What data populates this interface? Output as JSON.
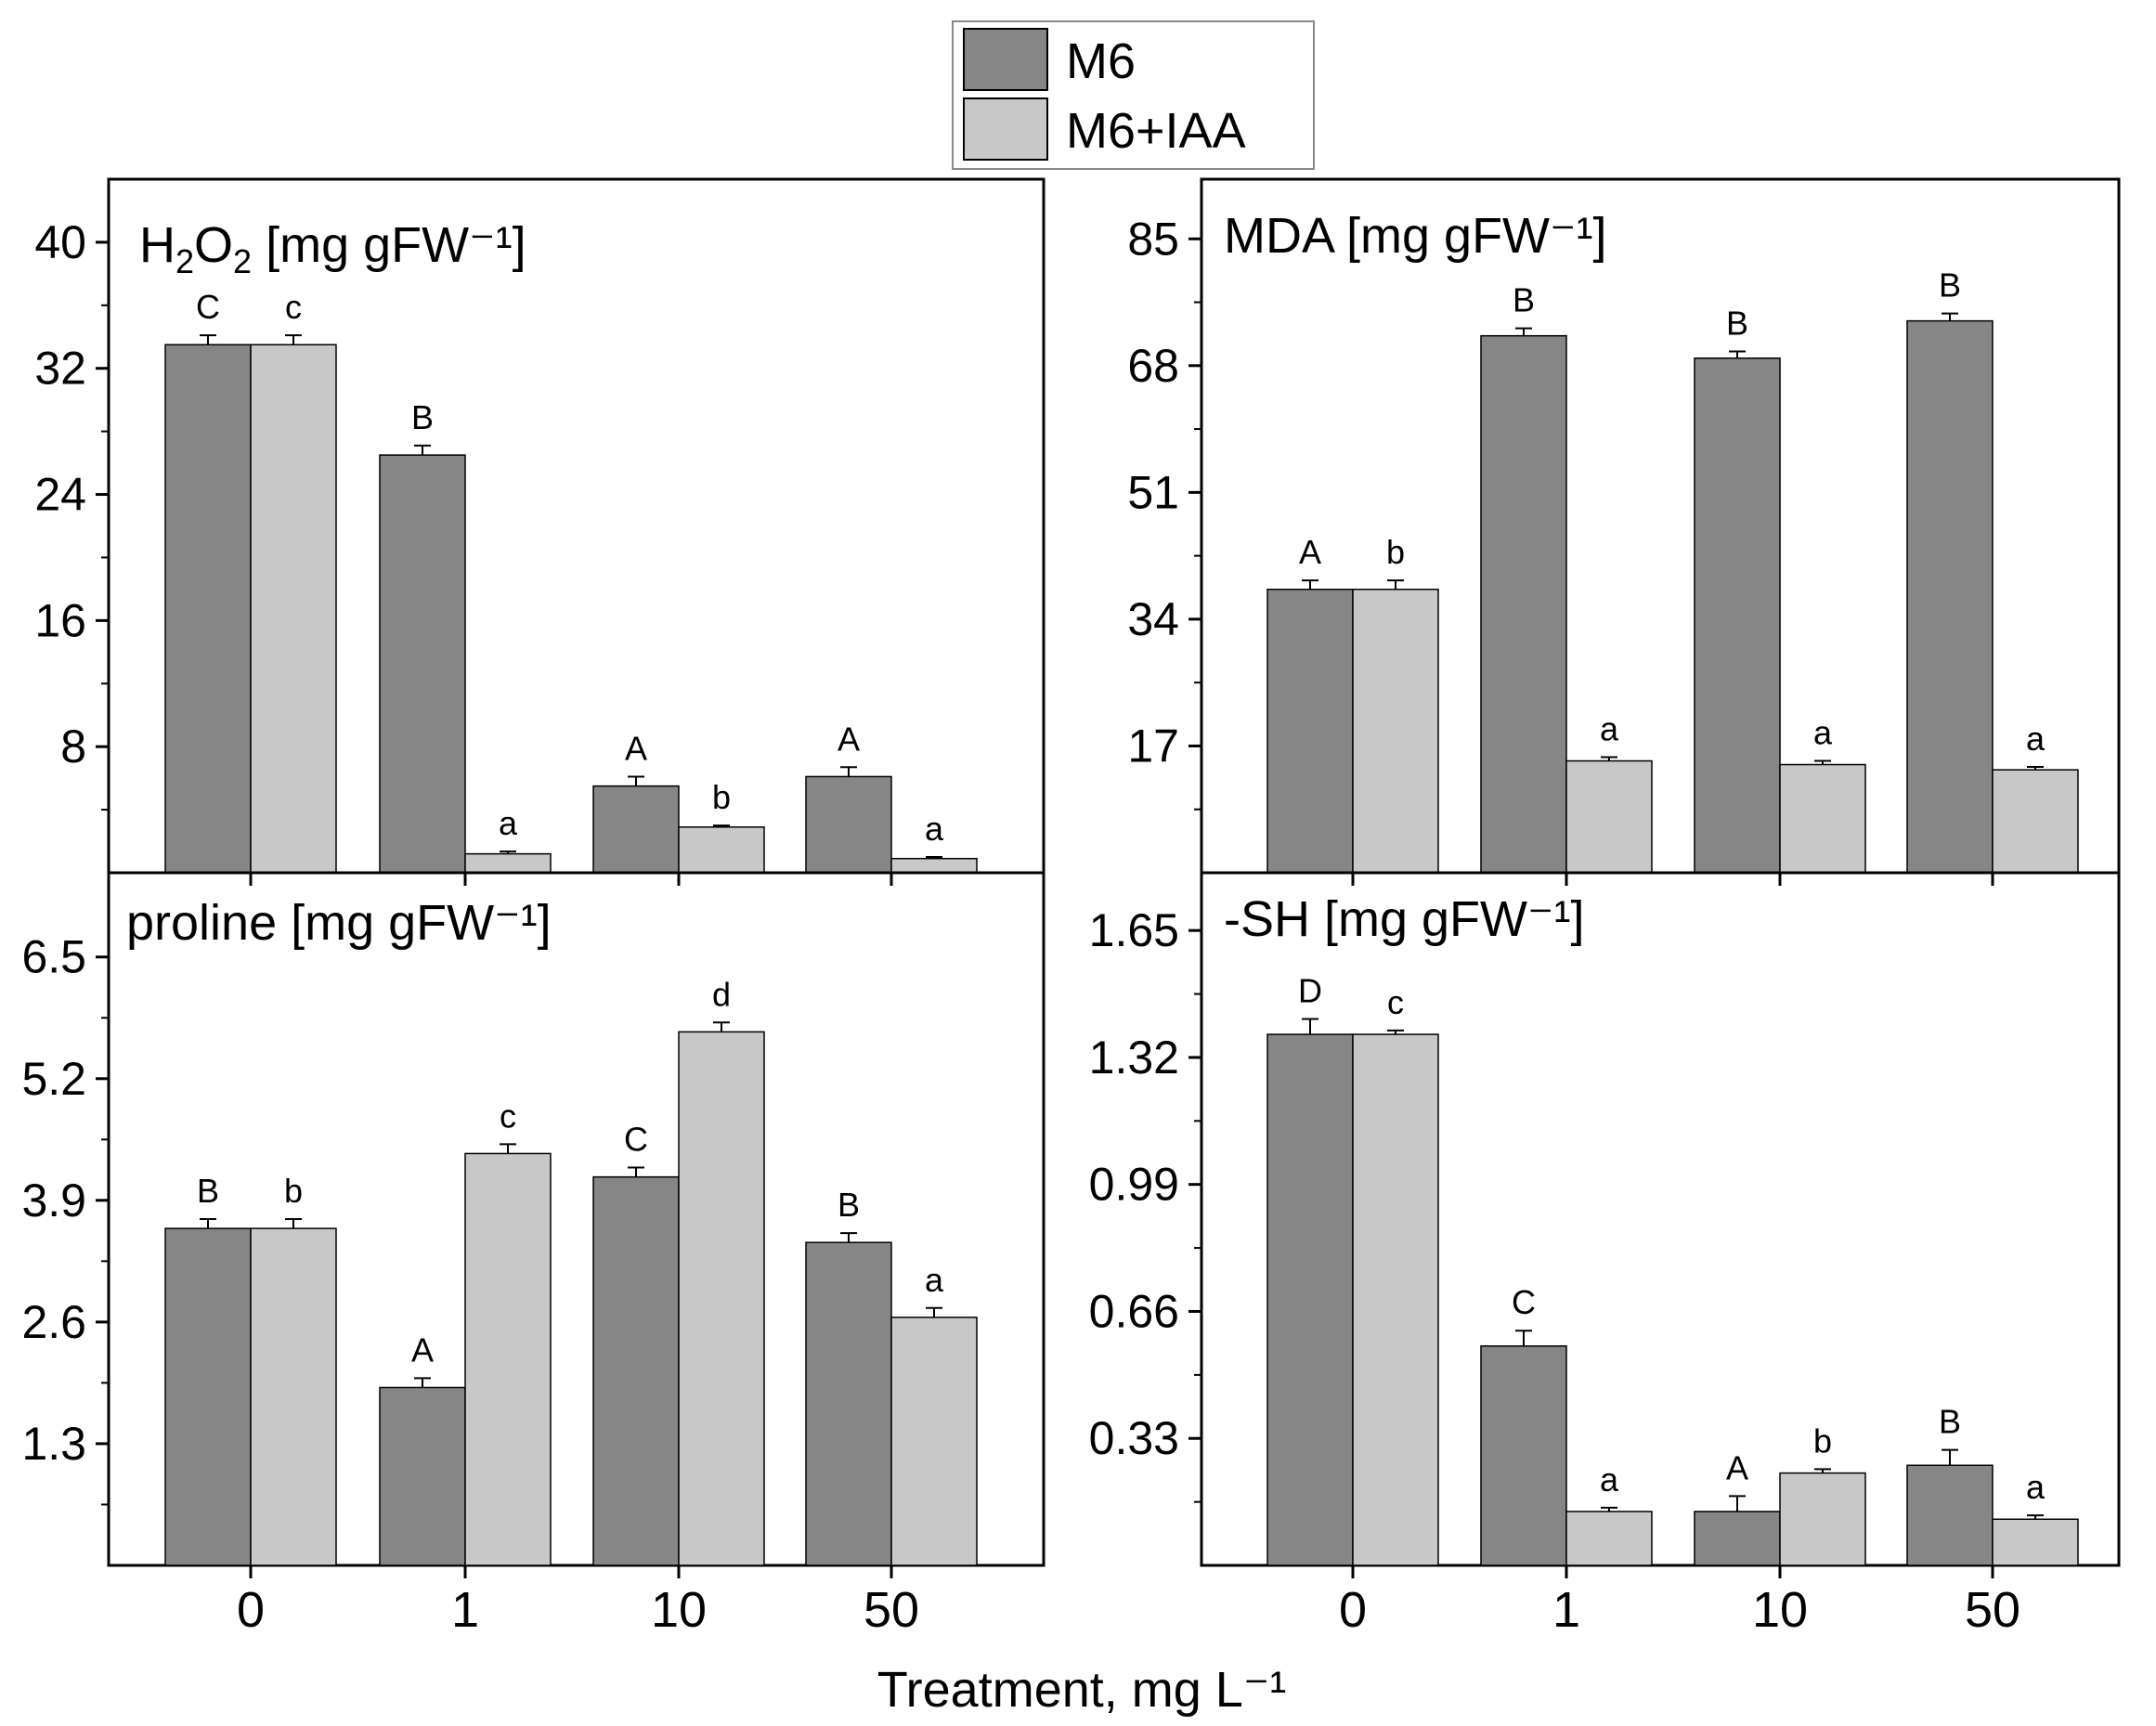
{
  "legend": [
    {
      "name": "M6",
      "color": "#868686"
    },
    {
      "name": "M6+IAA",
      "color": "#c8c8c8"
    }
  ],
  "x_axis_label": "Treatment, mg L⁻¹",
  "categories": [
    "0",
    "1",
    "10",
    "50"
  ],
  "colors": {
    "m6": "#868686",
    "m6iaa": "#c8c8c8",
    "frame": "#000000"
  },
  "chart_data": [
    {
      "type": "bar",
      "id": "h2o2",
      "title_parts": {
        "base": "H",
        "sub1": "2",
        "mid": "O",
        "sub2": "2",
        "unit": " [mg gFW⁻¹]"
      },
      "categories": [
        "0",
        "1",
        "10",
        "50"
      ],
      "ylim": [
        0,
        44
      ],
      "yticks": [
        "8",
        "16",
        "24",
        "32",
        "40"
      ],
      "series": [
        {
          "name": "M6",
          "values": [
            33.5,
            26.5,
            5.5,
            6.1
          ],
          "errors": [
            0.6,
            0.6,
            0.6,
            0.6
          ],
          "letters": [
            "C",
            "B",
            "A",
            "A"
          ]
        },
        {
          "name": "M6+IAA",
          "values": [
            33.5,
            1.2,
            2.9,
            0.9
          ],
          "errors": [
            0.6,
            0.15,
            0.1,
            0.1
          ],
          "letters": [
            "c",
            "a",
            "b",
            "a"
          ]
        }
      ]
    },
    {
      "type": "bar",
      "id": "mda",
      "title": "MDA [mg gFW⁻¹]",
      "categories": [
        "0",
        "1",
        "10",
        "50"
      ],
      "ylim": [
        0,
        93
      ],
      "yticks": [
        "17",
        "34",
        "51",
        "68",
        "85"
      ],
      "series": [
        {
          "name": "M6",
          "values": [
            38,
            72,
            69,
            74
          ],
          "errors": [
            1.2,
            1.0,
            0.9,
            1.0
          ],
          "letters": [
            "A",
            "B",
            "B",
            "B"
          ]
        },
        {
          "name": "M6+IAA",
          "values": [
            38,
            15,
            14.5,
            13.8
          ],
          "errors": [
            1.2,
            0.5,
            0.5,
            0.4
          ],
          "letters": [
            "b",
            "a",
            "a",
            "a"
          ]
        }
      ]
    },
    {
      "type": "bar",
      "id": "proline",
      "title": "proline [mg gFW⁻¹]",
      "categories": [
        "0",
        "1",
        "10",
        "50"
      ],
      "ylim": [
        0,
        7.4
      ],
      "yticks": [
        "1.3",
        "2.6",
        "3.9",
        "5.2",
        "6.5"
      ],
      "series": [
        {
          "name": "M6",
          "values": [
            3.6,
            1.9,
            4.15,
            3.45
          ],
          "errors": [
            0.1,
            0.1,
            0.1,
            0.1
          ],
          "letters": [
            "B",
            "A",
            "C",
            "B"
          ]
        },
        {
          "name": "M6+IAA",
          "values": [
            3.6,
            4.4,
            5.7,
            2.65
          ],
          "errors": [
            0.1,
            0.1,
            0.1,
            0.1
          ],
          "letters": [
            "b",
            "c",
            "d",
            "a"
          ]
        }
      ]
    },
    {
      "type": "bar",
      "id": "sh",
      "title": "-SH [mg gFW⁻¹]",
      "categories": [
        "0",
        "1",
        "10",
        "50"
      ],
      "ylim": [
        0,
        1.8
      ],
      "yticks": [
        "0.33",
        "0.66",
        "0.99",
        "1.32",
        "1.65"
      ],
      "series": [
        {
          "name": "M6",
          "values": [
            1.38,
            0.57,
            0.14,
            0.26
          ],
          "errors": [
            0.04,
            0.04,
            0.04,
            0.04
          ],
          "letters": [
            "D",
            "C",
            "A",
            "B"
          ]
        },
        {
          "name": "M6+IAA",
          "values": [
            1.38,
            0.14,
            0.24,
            0.12
          ],
          "errors": [
            0.01,
            0.01,
            0.01,
            0.01
          ],
          "letters": [
            "c",
            "a",
            "b",
            "a"
          ]
        }
      ]
    }
  ]
}
